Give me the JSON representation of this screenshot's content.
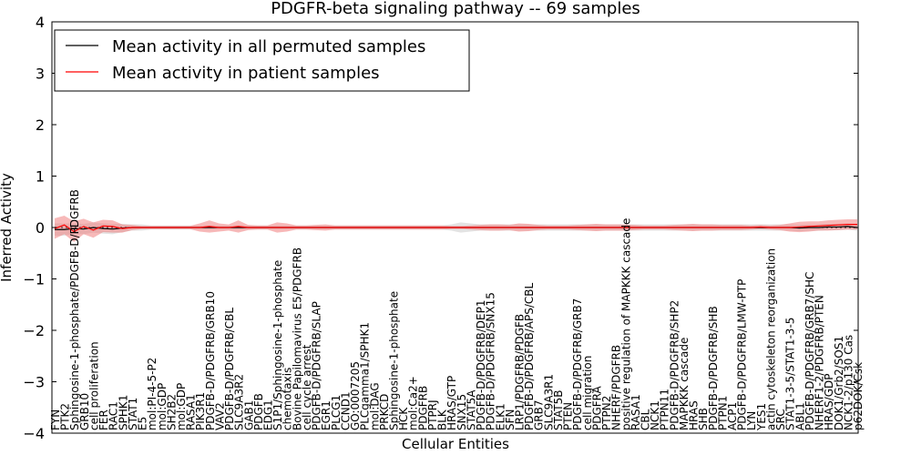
{
  "chart_data": {
    "type": "line",
    "title": "PDGFR-beta signaling pathway -- 69 samples",
    "xlabel": "Cellular Entities",
    "ylabel": "Inferred Activity",
    "ylim": [
      -4,
      4
    ],
    "yticks": [
      -4,
      -3,
      -2,
      -1,
      0,
      1,
      2,
      3,
      4
    ],
    "ytick_labels": [
      "−4",
      "−3",
      "−2",
      "−1",
      "0",
      "1",
      "2",
      "3",
      "4"
    ],
    "legend_position": "top-left",
    "categories": [
      "FYN",
      "PTK2",
      "Sphingosine-1-phosphate/PDGFB-D/PDGFRB",
      "GRB10",
      "cell proliferation",
      "FER",
      "RAC1",
      "SPHK1",
      "STAT1",
      "E5",
      "mol:PI-4-5-P2",
      "mol:GDP",
      "SH2B2",
      "mol:GDP",
      "RASA1",
      "PIK3R1",
      "PDGFB-D/PDGFRB/GRB10",
      "VAV2",
      "PDGFB-D/PDGFRB/CBL",
      "SLC9A3R2",
      "GAB1",
      "PDGFB",
      "EDG1",
      "S1P1/Sphingosine-1-phosphate",
      "chemotaxis",
      "Bovine Papilomavirus E5/PDGFRB",
      "cell cycle arrest",
      "PDGFB-D/PDGFRB/SLAP",
      "EGR1",
      "PLCG1",
      "CCND1",
      "GO:0007205",
      "PLCgamma1/SPHK1",
      "mol:DAG",
      "PRKCD",
      "Sphingosine-1-phosphate",
      "HCK",
      "mol:Ca2+",
      "PDGFRB",
      "PTPRJ",
      "BLK",
      "HRAS/GTP",
      "SNX15",
      "STAT5A",
      "PDGFB-D/PDGFRB/DEP1",
      "PDGFB-D/PDGFRB/SNX15",
      "ELK1",
      "SFN",
      "LRP1/PDGFRB/PDGFB",
      "PDGFB-D/PDGFRB/APS/CBL",
      "GRB7",
      "SLC9A3R1",
      "STAT5B",
      "PTEN",
      "PDGFB-D/PDGFRB/GRB7",
      "cell migration",
      "PDGFRA",
      "PTPN2",
      "NHERF/PDGFRB",
      "positive regulation of MAPKKK cascade",
      "RASA1",
      "CBL",
      "NCK1",
      "PTPN11",
      "PDGFB-D/PDGFRB/SHP2",
      "MAPKKK cascade",
      "HRAS",
      "SHB",
      "PDGFB-D/PDGFRB/SHB",
      "PTPN1",
      "ACP1",
      "PDGFB-D/PDGFRB/LMW-PTP",
      "LYN",
      "YES1",
      "actin cytoskeleton reorganization",
      "SRC",
      "STAT1-3-5/STAT1-3-5",
      "ABL1",
      "PDGFB-D/PDGFRB/GRB7/SHC",
      "NHERF1-2/PDGFRB/PTEN",
      "HRAS/GDP",
      "DOK1/Grb2/SOS1",
      "NCK1-2/p130 Cas",
      "p62DOK/Csk"
    ],
    "series": [
      {
        "name": "Mean activity in all permuted samples",
        "color": "#000000",
        "band_color": "#c0c0c0",
        "values": [
          -0.04,
          -0.04,
          -0.02,
          -0.03,
          0.0,
          -0.02,
          -0.03,
          -0.01,
          0.0,
          0.0,
          0.0,
          0.0,
          0.0,
          0.0,
          0.0,
          0.0,
          0.0,
          0.0,
          0.0,
          0.0,
          0.0,
          0.0,
          0.0,
          0.0,
          0.0,
          0.0,
          0.0,
          0.0,
          0.0,
          0.0,
          0.0,
          0.0,
          0.0,
          0.0,
          0.0,
          0.0,
          0.0,
          0.0,
          0.0,
          0.0,
          0.0,
          0.0,
          0.0,
          0.0,
          0.0,
          0.0,
          0.0,
          0.0,
          0.0,
          0.0,
          0.0,
          0.0,
          0.0,
          0.0,
          0.0,
          0.0,
          0.0,
          0.0,
          0.0,
          0.0,
          0.0,
          0.0,
          0.0,
          0.0,
          0.0,
          0.0,
          0.0,
          0.0,
          0.0,
          0.0,
          0.0,
          0.0,
          0.0,
          0.0,
          0.0,
          0.0,
          0.0,
          -0.01,
          0.0,
          0.0,
          0.01,
          0.01,
          0.02,
          0.0
        ],
        "spread": [
          0.12,
          0.12,
          0.1,
          0.1,
          0.1,
          0.1,
          0.1,
          0.08,
          0.06,
          0.06,
          0.04,
          0.04,
          0.04,
          0.04,
          0.04,
          0.04,
          0.04,
          0.04,
          0.04,
          0.04,
          0.04,
          0.04,
          0.04,
          0.04,
          0.04,
          0.04,
          0.04,
          0.04,
          0.04,
          0.04,
          0.04,
          0.04,
          0.04,
          0.04,
          0.04,
          0.04,
          0.04,
          0.04,
          0.04,
          0.04,
          0.04,
          0.06,
          0.1,
          0.08,
          0.06,
          0.06,
          0.06,
          0.06,
          0.06,
          0.06,
          0.06,
          0.06,
          0.06,
          0.06,
          0.06,
          0.06,
          0.06,
          0.06,
          0.06,
          0.06,
          0.06,
          0.06,
          0.06,
          0.06,
          0.06,
          0.06,
          0.06,
          0.06,
          0.06,
          0.06,
          0.06,
          0.06,
          0.06,
          0.06,
          0.06,
          0.06,
          0.06,
          0.06,
          0.06,
          0.06,
          0.06,
          0.06,
          0.06,
          0.06
        ]
      },
      {
        "name": "Mean activity in patient samples",
        "color": "#ff0000",
        "band_color": "#f08080",
        "values": [
          -0.02,
          0.05,
          -0.08,
          0.02,
          -0.05,
          0.03,
          0.02,
          -0.02,
          0.0,
          0.0,
          0.0,
          0.0,
          0.0,
          0.0,
          0.0,
          0.0,
          0.02,
          0.0,
          0.0,
          0.02,
          0.0,
          0.0,
          0.0,
          0.0,
          0.0,
          0.0,
          0.0,
          0.0,
          0.0,
          0.0,
          0.0,
          0.0,
          0.0,
          0.0,
          0.0,
          0.0,
          0.0,
          0.0,
          0.0,
          0.0,
          0.0,
          0.0,
          0.0,
          0.0,
          0.0,
          0.0,
          0.0,
          0.0,
          0.0,
          0.0,
          0.0,
          0.0,
          0.0,
          0.0,
          0.0,
          0.0,
          0.0,
          0.0,
          0.0,
          0.0,
          0.0,
          0.0,
          0.0,
          0.0,
          0.0,
          0.0,
          0.0,
          0.0,
          0.0,
          0.0,
          0.0,
          0.0,
          0.0,
          0.01,
          0.0,
          0.0,
          0.0,
          0.01,
          0.02,
          0.03,
          0.04,
          0.05,
          0.06,
          0.06
        ],
        "spread": [
          0.2,
          0.18,
          0.2,
          0.15,
          0.15,
          0.12,
          0.12,
          0.08,
          0.05,
          0.03,
          0.03,
          0.03,
          0.03,
          0.03,
          0.03,
          0.08,
          0.12,
          0.08,
          0.06,
          0.12,
          0.05,
          0.04,
          0.04,
          0.1,
          0.08,
          0.04,
          0.04,
          0.05,
          0.06,
          0.04,
          0.04,
          0.04,
          0.04,
          0.04,
          0.04,
          0.04,
          0.04,
          0.04,
          0.04,
          0.04,
          0.04,
          0.03,
          0.03,
          0.04,
          0.05,
          0.06,
          0.06,
          0.05,
          0.08,
          0.07,
          0.05,
          0.04,
          0.04,
          0.04,
          0.05,
          0.06,
          0.07,
          0.06,
          0.06,
          0.06,
          0.05,
          0.04,
          0.04,
          0.04,
          0.05,
          0.06,
          0.07,
          0.06,
          0.06,
          0.05,
          0.05,
          0.05,
          0.04,
          0.04,
          0.04,
          0.05,
          0.08,
          0.1,
          0.1,
          0.09,
          0.1,
          0.1,
          0.1,
          0.1
        ]
      }
    ]
  }
}
